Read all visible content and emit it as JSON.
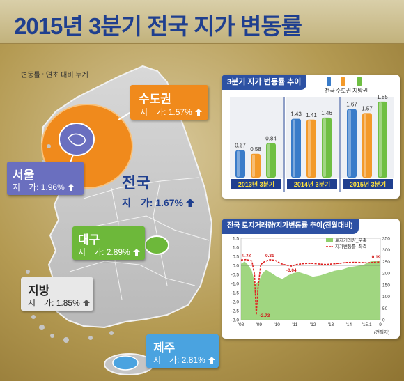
{
  "title": "2015년 3분기 전국 지가 변동률",
  "note": "변동률 : 연초 대비 누계",
  "regions": {
    "capital": {
      "name": "수도권",
      "value": "지　가: 1.57%",
      "trend": "up"
    },
    "seoul": {
      "name": "서울",
      "value": "지　가: 1.96%",
      "trend": "up"
    },
    "national": {
      "name": "전국",
      "value": "지　가: 1.67%",
      "trend": "up"
    },
    "daegu": {
      "name": "대구",
      "value": "지　가: 2.89%",
      "trend": "up"
    },
    "provinces": {
      "name": "지방",
      "value": "지　가: 1.85%",
      "trend": "up"
    },
    "jeju": {
      "name": "제주",
      "value": "지　가: 2.81%",
      "trend": "up"
    }
  },
  "colors": {
    "title": "#1f3f8f",
    "capital": "#f08a1c",
    "seoul": "#6a6fbf",
    "national": "#1f3f8f",
    "daegu": "#6db83a",
    "provinces": "#d6d6d6",
    "jeju": "#4aa3e0",
    "map": "#c5c5c5",
    "bar_national": "#3a7cc9",
    "bar_capital": "#f39a2a",
    "bar_provinces": "#6fbf43"
  },
  "chart_data": [
    {
      "type": "bar",
      "title": "3분기 지가 변동률 추이",
      "categories": [
        "2013년 3분기",
        "2014년 3분기",
        "2015년 3분기"
      ],
      "series": [
        {
          "name": "전국",
          "values": [
            0.67,
            1.43,
            1.67
          ]
        },
        {
          "name": "수도권",
          "values": [
            0.58,
            1.41,
            1.57
          ]
        },
        {
          "name": "지방권",
          "values": [
            0.84,
            1.46,
            1.85
          ]
        }
      ],
      "value_labels": [
        [
          "0.67",
          "0.58",
          "0.84"
        ],
        [
          "1.43",
          "1.41",
          "1.46"
        ],
        [
          "1.67",
          "1.57",
          "1.85"
        ]
      ]
    },
    {
      "type": "line",
      "title": "전국 토지거래량/지가변동률 추이(전월대비)",
      "legend": [
        "토지거래량_우축",
        "지가변동률_좌축"
      ],
      "x_ticks": [
        "'08",
        "'09",
        "'10",
        "'11",
        "'12",
        "'13",
        "'14",
        "'15.1",
        "9"
      ],
      "x_unit": "(전필지)",
      "y_left_ticks": [
        "1.5",
        "1.0",
        "0.5",
        "0.0",
        "-0.5",
        "-1.0",
        "-1.5",
        "-2.0",
        "-2.5",
        "-3.0"
      ],
      "y_right_ticks": [
        "350",
        "300",
        "250",
        "200",
        "150",
        "100",
        "50",
        "0"
      ],
      "ylim_left": [
        -3.0,
        1.5
      ],
      "ylim_right": [
        0,
        350
      ],
      "annotations": [
        "0.32",
        "0.31",
        "-2.73",
        "-0.04",
        "0.19"
      ],
      "land_change": [
        [
          2008.0,
          0.3
        ],
        [
          2008.3,
          0.32
        ],
        [
          2008.6,
          0.25
        ],
        [
          2008.75,
          -0.5
        ],
        [
          2008.85,
          -2.73
        ],
        [
          2008.95,
          -1.2
        ],
        [
          2009.1,
          0.05
        ],
        [
          2009.3,
          0.2
        ],
        [
          2009.6,
          0.31
        ],
        [
          2009.9,
          0.28
        ],
        [
          2010.2,
          0.1
        ],
        [
          2010.5,
          0.02
        ],
        [
          2010.8,
          -0.04
        ],
        [
          2011.1,
          0.05
        ],
        [
          2011.5,
          0.1
        ],
        [
          2011.9,
          0.11
        ],
        [
          2012.3,
          0.08
        ],
        [
          2012.7,
          0.05
        ],
        [
          2013.1,
          0.08
        ],
        [
          2013.5,
          0.12
        ],
        [
          2013.9,
          0.16
        ],
        [
          2014.3,
          0.17
        ],
        [
          2014.7,
          0.16
        ],
        [
          2015.0,
          0.14
        ],
        [
          2015.4,
          0.17
        ],
        [
          2015.75,
          0.19
        ]
      ],
      "transactions": [
        [
          2008.0,
          240
        ],
        [
          2008.2,
          250
        ],
        [
          2008.4,
          235
        ],
        [
          2008.6,
          210
        ],
        [
          2008.8,
          150
        ],
        [
          2009.0,
          170
        ],
        [
          2009.2,
          200
        ],
        [
          2009.4,
          215
        ],
        [
          2009.6,
          205
        ],
        [
          2009.8,
          195
        ],
        [
          2010.0,
          185
        ],
        [
          2010.3,
          175
        ],
        [
          2010.6,
          190
        ],
        [
          2010.9,
          200
        ],
        [
          2011.2,
          205
        ],
        [
          2011.6,
          195
        ],
        [
          2012.0,
          185
        ],
        [
          2012.4,
          190
        ],
        [
          2012.8,
          200
        ],
        [
          2013.2,
          210
        ],
        [
          2013.6,
          215
        ],
        [
          2014.0,
          225
        ],
        [
          2014.4,
          230
        ],
        [
          2014.8,
          235
        ],
        [
          2015.2,
          250
        ],
        [
          2015.75,
          255
        ]
      ]
    }
  ]
}
